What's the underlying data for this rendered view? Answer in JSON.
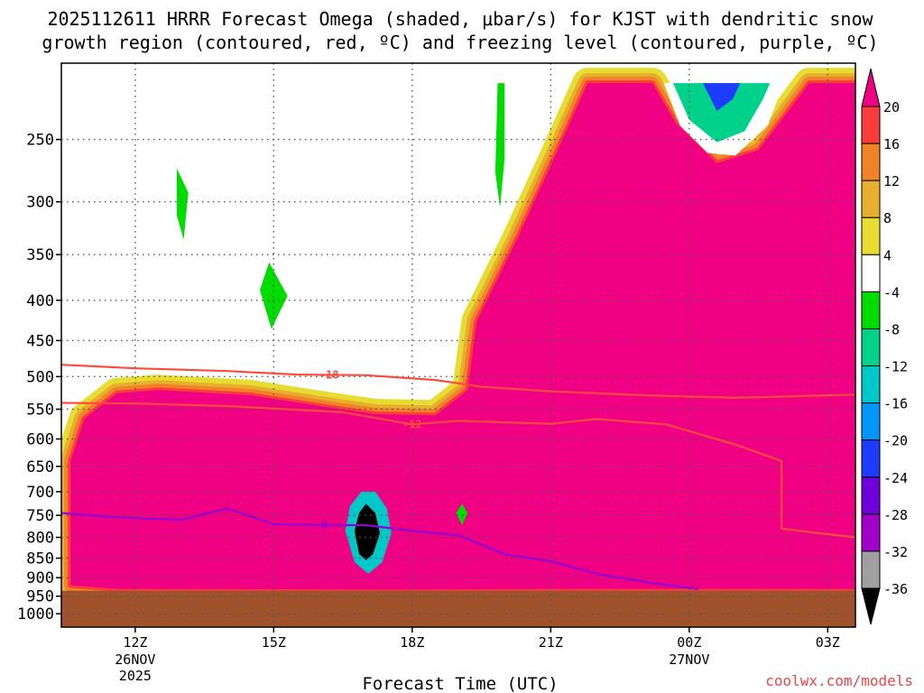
{
  "chart_data": {
    "type": "heatmap",
    "title_line1": "2025112611 HRRR Forecast Omega (shaded, μbar/s) for KJST with dendritic snow",
    "title_line2": "growth region (contoured, red, ºC) and freezing level (contoured, purple, ºC)",
    "xlabel": "Forecast Time (UTC)",
    "ylabel": "",
    "watermark": "coolwx.com/models",
    "x_range_hours": [
      10.4,
      27.6
    ],
    "y_range_hpa": [
      200,
      1040
    ],
    "ground_top_hpa": 935,
    "x_ticks": [
      {
        "hour": 12,
        "label": "12Z",
        "sub1": "26NOV",
        "sub2": "2025"
      },
      {
        "hour": 15,
        "label": "15Z",
        "sub1": "",
        "sub2": ""
      },
      {
        "hour": 18,
        "label": "18Z",
        "sub1": "",
        "sub2": ""
      },
      {
        "hour": 21,
        "label": "21Z",
        "sub1": "",
        "sub2": ""
      },
      {
        "hour": 24,
        "label": "00Z",
        "sub1": "27NOV",
        "sub2": ""
      },
      {
        "hour": 27,
        "label": "03Z",
        "sub1": "",
        "sub2": ""
      }
    ],
    "y_ticks": [
      {
        "p": 250,
        "label": "250"
      },
      {
        "p": 300,
        "label": "300"
      },
      {
        "p": 350,
        "label": "350"
      },
      {
        "p": 400,
        "label": "400"
      },
      {
        "p": 450,
        "label": "450"
      },
      {
        "p": 500,
        "label": "500"
      },
      {
        "p": 550,
        "label": "550"
      },
      {
        "p": 600,
        "label": "600"
      },
      {
        "p": 650,
        "label": "650"
      },
      {
        "p": 700,
        "label": "700"
      },
      {
        "p": 750,
        "label": "750"
      },
      {
        "p": 800,
        "label": "800"
      },
      {
        "p": 850,
        "label": "850"
      },
      {
        "p": 900,
        "label": "900"
      },
      {
        "p": 950,
        "label": "950"
      },
      {
        "p": 1000,
        "label": "1000"
      }
    ],
    "colorbar": {
      "colors": [
        "#000000",
        "#a0a0a0",
        "#a000c8",
        "#6e00dc",
        "#1e3cff",
        "#0096ff",
        "#00c8c8",
        "#00d28c",
        "#00dc00",
        "#ffffff",
        "#e6dc32",
        "#e6af2d",
        "#f08228",
        "#fa3c3c",
        "#f00082"
      ],
      "labels": [
        "-36",
        "-32",
        "-28",
        "-24",
        "-20",
        "-16",
        "-12",
        "-8",
        "-4",
        "4",
        "8",
        "12",
        "16",
        "20"
      ]
    },
    "omega_regions": [
      {
        "name": "ascent-core",
        "color": "#f00082",
        "points": [
          [
            10.6,
            920
          ],
          [
            11.6,
            930
          ],
          [
            18,
            932
          ],
          [
            21,
            930
          ],
          [
            24,
            930
          ],
          [
            27.6,
            930
          ],
          [
            27.6,
            212
          ],
          [
            26.6,
            212
          ],
          [
            26.1,
            232
          ],
          [
            25.5,
            258
          ],
          [
            24.6,
            268
          ],
          [
            23.7,
            238
          ],
          [
            23.2,
            212
          ],
          [
            21.8,
            212
          ],
          [
            21.1,
            262
          ],
          [
            20.3,
            332
          ],
          [
            19.4,
            425
          ],
          [
            19.2,
            520
          ],
          [
            18.5,
            560
          ],
          [
            17.2,
            558
          ],
          [
            16,
            545
          ],
          [
            14.5,
            528
          ],
          [
            12.5,
            520
          ],
          [
            11.6,
            525
          ],
          [
            10.9,
            565
          ],
          [
            10.6,
            640
          ]
        ]
      },
      {
        "name": "subsidence-upper",
        "color": "#ffffff",
        "points": [
          [
            11.8,
            212
          ],
          [
            12.3,
            400
          ],
          [
            13.5,
            430
          ],
          [
            15.5,
            455
          ],
          [
            16.5,
            450
          ],
          [
            17.3,
            430
          ],
          [
            17.6,
            370
          ],
          [
            17.9,
            300
          ],
          [
            18.3,
            255
          ],
          [
            18.8,
            232
          ],
          [
            19.3,
            212
          ]
        ]
      },
      {
        "name": "subsidence-upper-right",
        "color": "#ffffff",
        "points": [
          [
            23.45,
            212
          ],
          [
            23.8,
            240
          ],
          [
            24.4,
            260
          ],
          [
            25.0,
            262
          ],
          [
            25.7,
            240
          ],
          [
            26.05,
            212
          ]
        ]
      },
      {
        "name": "descent-core-right",
        "color": "#00d28c",
        "points": [
          [
            23.65,
            212
          ],
          [
            24.0,
            236
          ],
          [
            24.6,
            252
          ],
          [
            25.2,
            244
          ],
          [
            25.6,
            222
          ],
          [
            25.75,
            212
          ]
        ]
      },
      {
        "name": "descent-deep-right",
        "color": "#1e3cff",
        "points": [
          [
            24.3,
            212
          ],
          [
            24.6,
            230
          ],
          [
            24.95,
            222
          ],
          [
            25.1,
            212
          ]
        ]
      },
      {
        "name": "descent-cell-low",
        "color": "#00c8c8",
        "points": [
          [
            16.55,
            785
          ],
          [
            16.65,
            730
          ],
          [
            16.9,
            700
          ],
          [
            17.2,
            700
          ],
          [
            17.45,
            735
          ],
          [
            17.55,
            790
          ],
          [
            17.35,
            860
          ],
          [
            17.05,
            890
          ],
          [
            16.75,
            860
          ]
        ]
      },
      {
        "name": "descent-cell-core",
        "color": "#000000",
        "points": [
          [
            16.75,
            785
          ],
          [
            16.85,
            745
          ],
          [
            17.0,
            725
          ],
          [
            17.2,
            745
          ],
          [
            17.3,
            790
          ],
          [
            17.15,
            840
          ],
          [
            17.0,
            855
          ],
          [
            16.85,
            840
          ]
        ]
      },
      {
        "name": "descent-cell-small",
        "color": "#00dc00",
        "points": [
          [
            18.95,
            745
          ],
          [
            19.08,
            725
          ],
          [
            19.2,
            745
          ],
          [
            19.08,
            772
          ]
        ]
      },
      {
        "name": "descent-cell-upper",
        "color": "#00dc00",
        "points": [
          [
            12.9,
            272
          ],
          [
            13.15,
            292
          ],
          [
            13.05,
            335
          ],
          [
            12.9,
            312
          ]
        ]
      },
      {
        "name": "descent-cell-mid",
        "color": "#00dc00",
        "points": [
          [
            14.7,
            388
          ],
          [
            14.9,
            358
          ],
          [
            15.3,
            395
          ],
          [
            14.95,
            435
          ]
        ]
      },
      {
        "name": "descent-cell-strip",
        "color": "#00dc00",
        "points": [
          [
            19.85,
            212
          ],
          [
            20.0,
            212
          ],
          [
            20.0,
            265
          ],
          [
            19.9,
            305
          ],
          [
            19.8,
            275
          ]
        ]
      }
    ],
    "contours": [
      {
        "name": "dgz-top-line",
        "label": "-18",
        "label_hour": 16.2,
        "color": "#ff4b3c",
        "points": [
          [
            10.4,
            483
          ],
          [
            12,
            488
          ],
          [
            14,
            492
          ],
          [
            15.5,
            497
          ],
          [
            17,
            498
          ],
          [
            18.5,
            505
          ],
          [
            19.5,
            515
          ],
          [
            21,
            522
          ],
          [
            23,
            528
          ],
          [
            25,
            532
          ],
          [
            27.6,
            527
          ]
        ]
      },
      {
        "name": "dgz-bottom-line",
        "label": "-12",
        "label_hour": 18.0,
        "color": "#ff4b3c",
        "points": [
          [
            10.4,
            540
          ],
          [
            12,
            541
          ],
          [
            14,
            545
          ],
          [
            16.5,
            555
          ],
          [
            18,
            575
          ],
          [
            19,
            569
          ],
          [
            21,
            574
          ],
          [
            22,
            566
          ],
          [
            23.5,
            575
          ],
          [
            25,
            610
          ],
          [
            26,
            640
          ],
          [
            26,
            780
          ],
          [
            27.6,
            800
          ]
        ]
      },
      {
        "name": "freezing-level-line",
        "label": "0",
        "label_hour": 16.1,
        "color": "#9400d3",
        "points": [
          [
            10.4,
            745
          ],
          [
            11.5,
            754
          ],
          [
            13,
            760
          ],
          [
            14,
            735
          ],
          [
            15,
            770
          ],
          [
            16,
            772
          ],
          [
            17,
            772
          ],
          [
            18,
            785
          ],
          [
            19,
            795
          ],
          [
            20,
            840
          ],
          [
            21,
            858
          ],
          [
            22,
            890
          ],
          [
            23.3,
            916
          ],
          [
            24.2,
            930
          ]
        ]
      }
    ]
  }
}
